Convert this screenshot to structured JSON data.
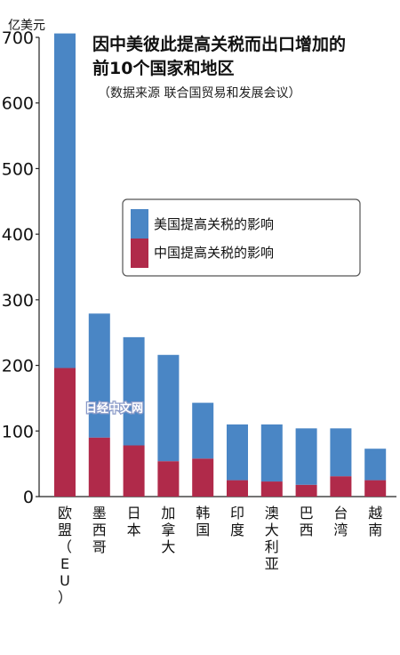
{
  "chart_data": {
    "type": "bar",
    "stacked": true,
    "title_line1": "因中美彼此提高关税而出口增加的",
    "title_line2": "前10个国家和地区",
    "subtitle": "（数据来源 联合国贸易和发展会议）",
    "ylabel": "亿美元",
    "ylim": [
      0,
      700
    ],
    "yticks": [
      "0",
      "100",
      "200",
      "300",
      "400",
      "500",
      "600",
      "700"
    ],
    "categories": [
      "欧盟（EU）",
      "墨西哥",
      "日本",
      "加拿大",
      "韩国",
      "印度",
      "澳大利亚",
      "巴西",
      "台湾",
      "越南"
    ],
    "series": [
      {
        "name": "中国提高关税的影响",
        "color": "#b02a4a",
        "values": [
          196,
          90,
          78,
          54,
          58,
          25,
          23,
          18,
          31,
          25
        ]
      },
      {
        "name": "美国提高关税的影响",
        "color": "#4a86c5",
        "values": [
          510,
          189,
          165,
          162,
          85,
          85,
          87,
          86,
          73,
          48
        ]
      }
    ],
    "legend_position": "center-right",
    "watermark": "日经中文网"
  }
}
